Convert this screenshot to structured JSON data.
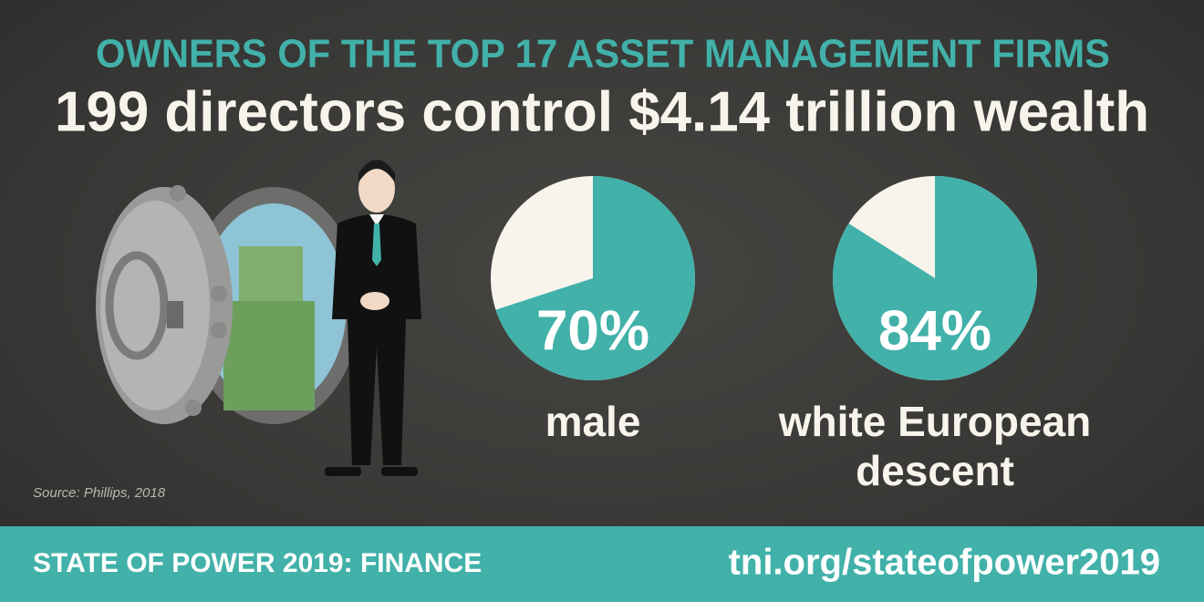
{
  "header": {
    "title": "OWNERS OF THE TOP 17 ASSET MANAGEMENT FIRMS",
    "subtitle": "199 directors control $4.14 trillion wealth"
  },
  "source": "Source: Phillips, 2018",
  "footer": {
    "left": "STATE OF POWER 2019: FINANCE",
    "right": "tni.org/stateofpower2019"
  },
  "chart_data": [
    {
      "type": "pie",
      "categories": [
        "male"
      ],
      "values": [
        70
      ],
      "value_labels": [
        "70%"
      ],
      "color": "#41b1a9"
    },
    {
      "type": "pie",
      "categories": [
        "white European descent"
      ],
      "values": [
        84
      ],
      "value_labels": [
        "84%"
      ],
      "color": "#41b1a9"
    }
  ]
}
